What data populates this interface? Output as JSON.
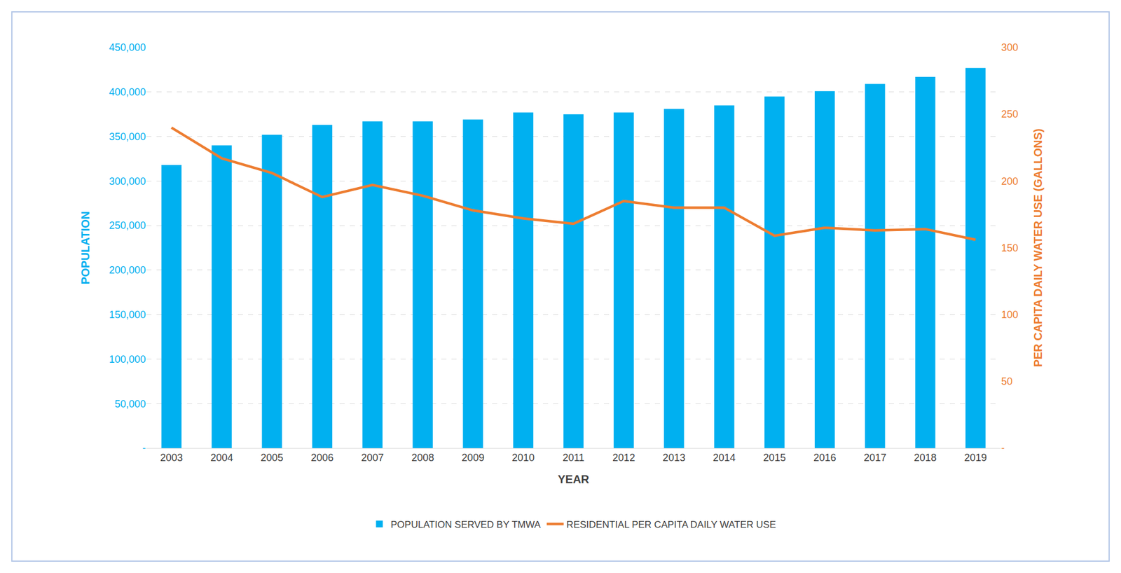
{
  "chart_data": {
    "type": "bar",
    "x_label": "YEAR",
    "y_label": "POPULATION",
    "y2_label": "PER CAPITA DAILY WATER USE (GALLONS)",
    "categories": [
      "2003",
      "2004",
      "2005",
      "2006",
      "2007",
      "2008",
      "2009",
      "2010",
      "2011",
      "2012",
      "2013",
      "2014",
      "2015",
      "2016",
      "2017",
      "2018",
      "2019"
    ],
    "series": [
      {
        "name": "POPULATION SERVED BY TMWA",
        "type": "bar",
        "color": "#00b0f0",
        "values": [
          318000,
          340000,
          352000,
          363000,
          367000,
          367000,
          369000,
          377000,
          375000,
          377000,
          381000,
          385000,
          395000,
          401000,
          409000,
          417000,
          427000
        ]
      },
      {
        "name": "RESIDENTIAL PER CAPITA DAILY WATER USE",
        "type": "line",
        "color": "#ed7d31",
        "axis": "y2",
        "values": [
          240,
          217,
          206,
          188,
          197,
          189,
          178,
          172,
          168,
          185,
          180,
          180,
          159,
          165,
          163,
          164,
          156
        ]
      }
    ],
    "ylim": [
      0,
      450000
    ],
    "yticks": [
      {
        "value": 0,
        "label": "-"
      },
      {
        "value": 50000,
        "label": "50,000"
      },
      {
        "value": 100000,
        "label": "100,000"
      },
      {
        "value": 150000,
        "label": "150,000"
      },
      {
        "value": 200000,
        "label": "200,000"
      },
      {
        "value": 250000,
        "label": "250,000"
      },
      {
        "value": 300000,
        "label": "300,000"
      },
      {
        "value": 350000,
        "label": "350,000"
      },
      {
        "value": 400000,
        "label": "400,000"
      },
      {
        "value": 450000,
        "label": "450,000"
      }
    ],
    "y2lim": [
      0,
      300
    ],
    "y2ticks": [
      {
        "value": 0,
        "label": "-"
      },
      50,
      100,
      150,
      200,
      250,
      300
    ],
    "grid": true,
    "legend": "bottom"
  }
}
